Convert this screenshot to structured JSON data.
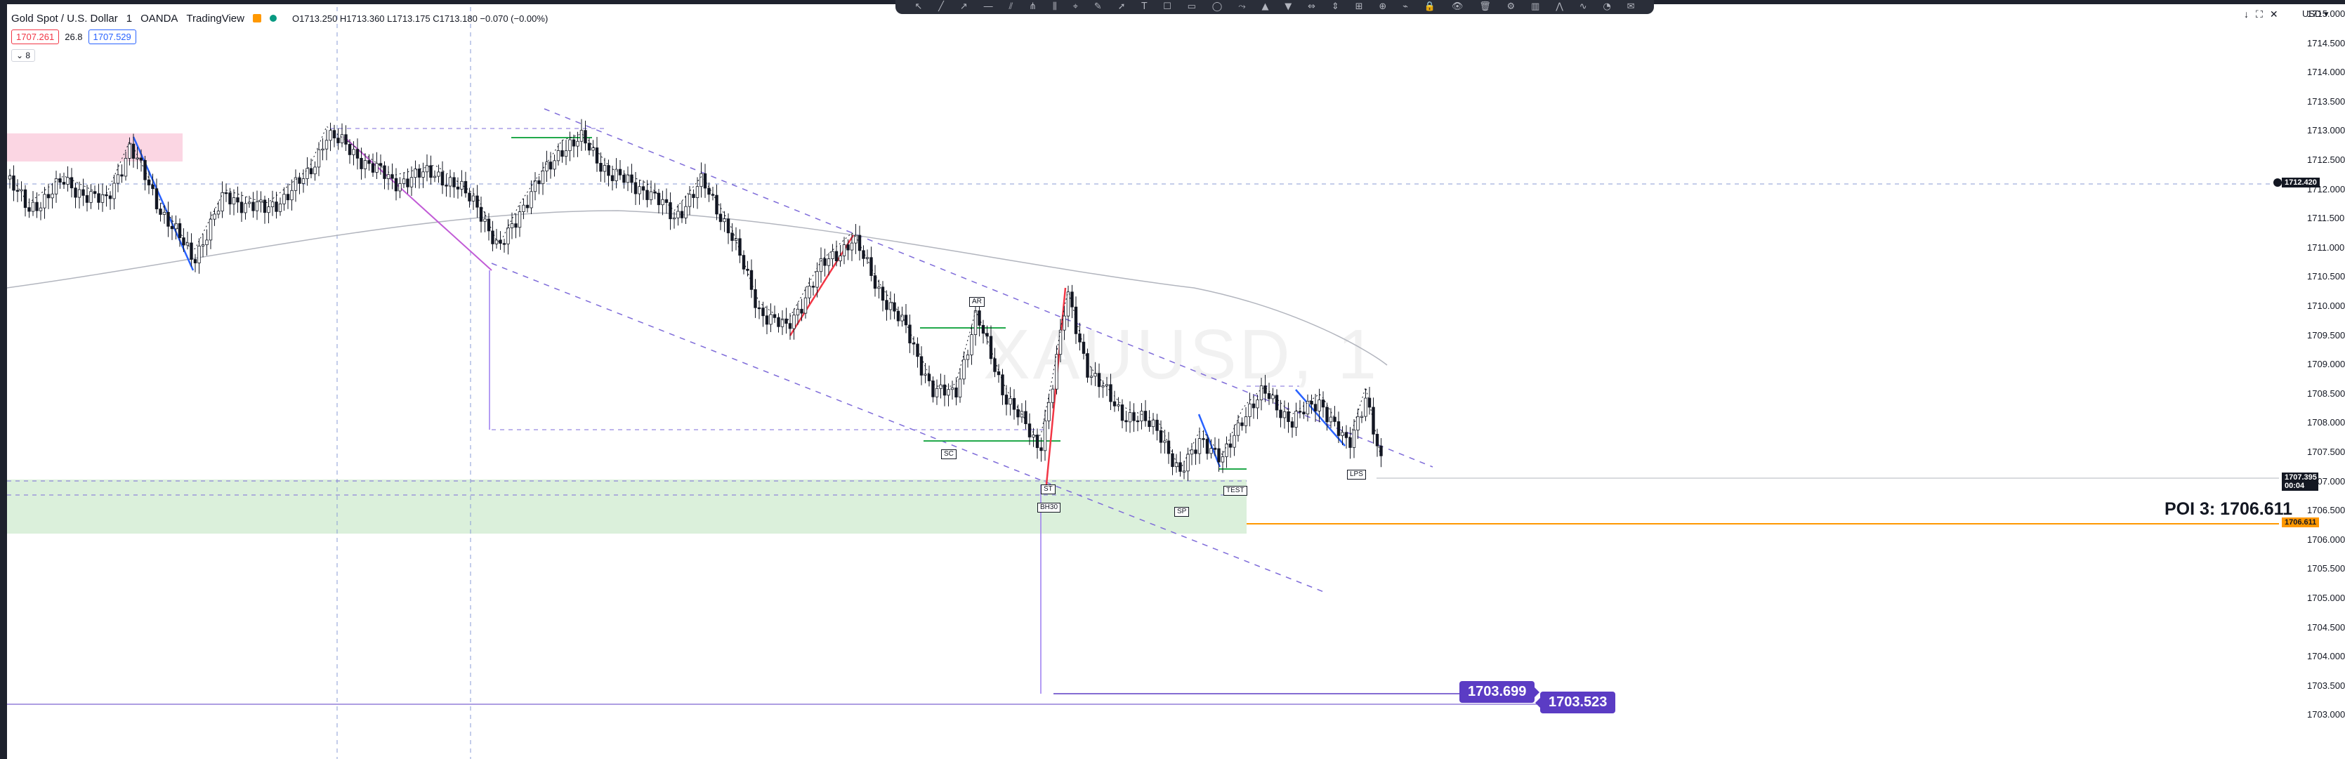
{
  "toolbar": {
    "icons": [
      "cursor-icon",
      "trend-line-icon",
      "ray-icon",
      "horizontal-line-icon",
      "channel-icon",
      "pitchfork-icon",
      "fib-icon",
      "gann-icon",
      "brush-icon",
      "arrow-icon",
      "text-icon",
      "callout-icon",
      "rectangle-icon",
      "circle-icon",
      "path-icon",
      "long-position-icon",
      "short-position-icon",
      "date-range-icon",
      "price-range-icon",
      "measure-icon",
      "zoom-icon",
      "magnet-icon",
      "lock-icon",
      "eye-icon",
      "trash-icon",
      "settings-icon",
      "bar-pattern-icon",
      "xabcd-icon",
      "elliott-icon",
      "cycle-icon",
      "note-icon"
    ],
    "glyphs": [
      "↖",
      "╱",
      "↗",
      "―",
      "⫽",
      "⋔",
      "⫼",
      "⌖",
      "✎",
      "➚",
      "T",
      "☐",
      "▭",
      "◯",
      "⤳",
      "▲",
      "▼",
      "⇔",
      "⇕",
      "⊞",
      "⊕",
      "⌁",
      "🔒",
      "👁",
      "🗑",
      "⚙",
      "▥",
      "⋀",
      "∿",
      "◔",
      "✉"
    ]
  },
  "legend": {
    "symbol": "Gold Spot / U.S. Dollar",
    "interval": "1",
    "broker": "OANDA",
    "platform": "TradingView",
    "ohlc": "O1713.250 H1713.360 L1713.175 C1713.180 −0.070 (−0.00%)",
    "sell_price": "1707.261",
    "spread": "26.8",
    "buy_price": "1707.529",
    "collapse": "⌄ 8"
  },
  "axis": {
    "currency": "USD ▾",
    "controls": [
      "↓",
      "⛶",
      "✕"
    ],
    "labels": [
      "1715.000",
      "1714.500",
      "1714.000",
      "1713.500",
      "1713.000",
      "1712.500",
      "1712.000",
      "1711.500",
      "1711.000",
      "1710.500",
      "1710.000",
      "1709.500",
      "1709.000",
      "1708.500",
      "1708.000",
      "1707.500",
      "1707.000",
      "1706.500",
      "1706.000",
      "1705.500",
      "1705.000",
      "1704.500",
      "1704.000",
      "1703.500",
      "1703.000"
    ],
    "flags": {
      "crosshair": "1712.420",
      "current": "1707.395",
      "countdown": "00:04",
      "poi": "1706.611"
    }
  },
  "annotations": {
    "poi": "POI 3: 1706.611",
    "target_1": "1703.699",
    "target_2": "1703.523",
    "labels": {
      "ar": "AR",
      "sc": "SC",
      "st": "ST",
      "st_b": "ST",
      "spring": "SP",
      "test": "TEST",
      "lps": "LPS",
      "bh": "BH30"
    }
  },
  "watermark": "XAUUSD, 1",
  "colors": {
    "candle": "#131722",
    "ma_gray": "#b2b5be",
    "dashed_blue": "#7e6bd9",
    "zone_green": "#d7eed7",
    "zone_pink": "#fbd6e3",
    "poi_orange": "#ff9800",
    "tag_purple": "#5b3cc4"
  }
}
